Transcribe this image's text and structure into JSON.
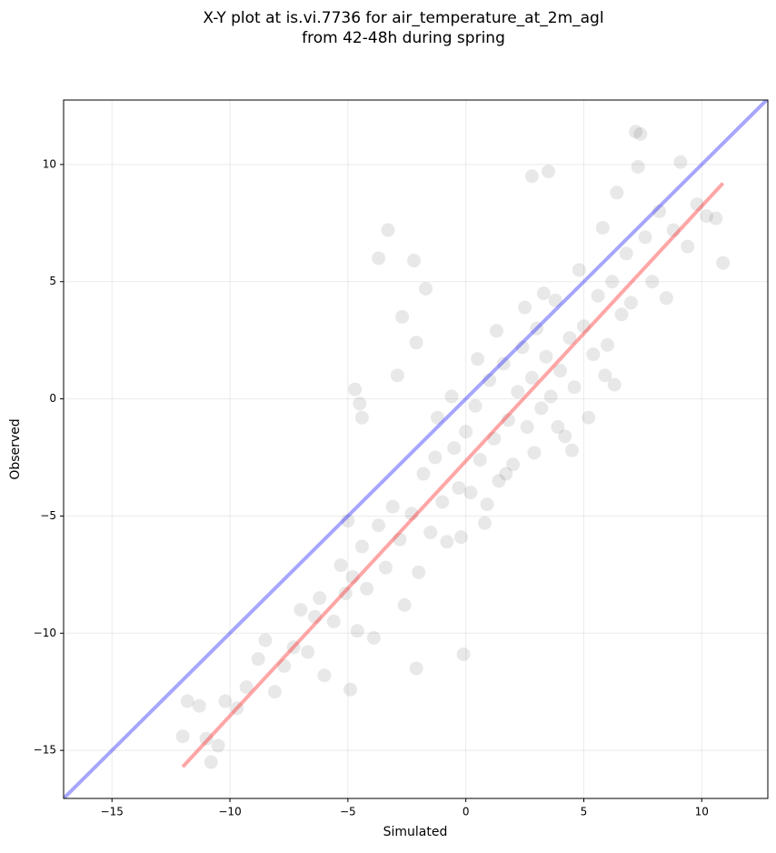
{
  "chart_data": {
    "type": "scatter",
    "title": [
      "X-Y plot at is.vi.7736 for air_temperature_at_2m_agl",
      "from 42-48h during spring"
    ],
    "xlabel": "Simulated",
    "ylabel": "Observed",
    "xlim": [
      -17.05,
      12.8
    ],
    "ylim": [
      -17.05,
      12.75
    ],
    "xticks": [
      {
        "value": -15,
        "label": "−15"
      },
      {
        "value": -10,
        "label": "−10"
      },
      {
        "value": -5,
        "label": "−5"
      },
      0,
      5,
      10
    ],
    "yticks": [
      {
        "value": -15,
        "label": "−15"
      },
      {
        "value": -10,
        "label": "−10"
      },
      {
        "value": -5,
        "label": "−5"
      },
      0,
      5,
      10
    ],
    "grid": true,
    "color": "#000000",
    "alpha": 0.09,
    "x": [
      -12,
      -11.8,
      -11.3,
      -11,
      -10.8,
      -10.5,
      -10.2,
      -9.7,
      -9.3,
      -8.8,
      -8.5,
      -8.1,
      -7.7,
      -7.3,
      -7,
      -6.7,
      -6.4,
      -6.2,
      -6,
      -5.6,
      -5.3,
      -5.1,
      -5,
      -4.8,
      -4.6,
      -4.4,
      -4.2,
      -3.9,
      -3.7,
      -3.4,
      -3.1,
      -2.8,
      -2.6,
      -2.3,
      -2,
      -1.8,
      -1.5,
      -1.3,
      -1,
      -0.8,
      -0.5,
      -0.3,
      0,
      0.2,
      0.4,
      0.6,
      0.8,
      1,
      1.2,
      1.4,
      1.6,
      1.8,
      2,
      2.2,
      2.4,
      2.6,
      2.8,
      3,
      3.2,
      3.4,
      3.6,
      3.8,
      4,
      4.2,
      4.4,
      4.6,
      4.8,
      5,
      5.2,
      5.4,
      5.6,
      5.8,
      6,
      6.2,
      6.4,
      6.6,
      6.8,
      7,
      7.3,
      7.6,
      7.9,
      8.2,
      8.5,
      8.8,
      9.1,
      9.4,
      9.8,
      10.2,
      10.6,
      0.5,
      1.3,
      2.5,
      3.3,
      -0.6,
      -1.2,
      4.5,
      3.9,
      2.9,
      1.7,
      0.9,
      -0.2,
      5.9,
      6.3,
      -3.3,
      -3.7,
      -2.2,
      -1.7,
      -2.7,
      -2.1,
      -2.9,
      -4.7,
      -4.5,
      -4.4,
      2.8,
      3.5,
      -0.1,
      -4.9,
      -2.1,
      7.2,
      7.4,
      10.9
    ],
    "values": [
      -14.4,
      -12.9,
      -13.1,
      -14.5,
      -15.5,
      -14.8,
      -12.9,
      -13.2,
      -12.3,
      -11.1,
      -10.3,
      -12.5,
      -11.4,
      -10.6,
      -9,
      -10.8,
      -9.3,
      -8.5,
      -11.8,
      -9.5,
      -7.1,
      -8.3,
      -5.2,
      -7.6,
      -9.9,
      -6.3,
      -8.1,
      -10.2,
      -5.4,
      -7.2,
      -4.6,
      -6,
      -8.8,
      -4.9,
      -7.4,
      -3.2,
      -5.7,
      -2.5,
      -4.4,
      -6.1,
      -2.1,
      -3.8,
      -1.4,
      -4,
      -0.3,
      -2.6,
      -5.3,
      0.8,
      -1.7,
      -3.5,
      1.5,
      -0.9,
      -2.8,
      0.3,
      2.2,
      -1.2,
      0.9,
      3,
      -0.4,
      1.8,
      0.1,
      4.2,
      1.2,
      -1.6,
      2.6,
      0.5,
      5.5,
      3.1,
      -0.8,
      1.9,
      4.4,
      7.3,
      2.3,
      5,
      8.8,
      3.6,
      6.2,
      4.1,
      9.9,
      6.9,
      5,
      8,
      4.3,
      7.2,
      10.1,
      6.5,
      8.3,
      7.8,
      7.7,
      1.7,
      2.9,
      3.9,
      4.5,
      0.1,
      -0.8,
      -2.2,
      -1.2,
      -2.3,
      -3.2,
      -4.5,
      -5.9,
      1,
      0.6,
      7.2,
      6,
      5.9,
      4.7,
      3.5,
      2.4,
      1,
      0.4,
      -0.2,
      -0.8,
      9.5,
      9.7,
      -10.9,
      -12.4,
      -11.5,
      11.4,
      11.3,
      5.8
    ],
    "lines": [
      {
        "color": "#0000ff",
        "x": [
          -17.05,
          12.8
        ],
        "values": [
          -17.05,
          12.8
        ]
      },
      {
        "color": "#ff0000",
        "x": [
          -12,
          10.9
        ],
        "values": [
          -15.7,
          9.2
        ]
      }
    ]
  }
}
